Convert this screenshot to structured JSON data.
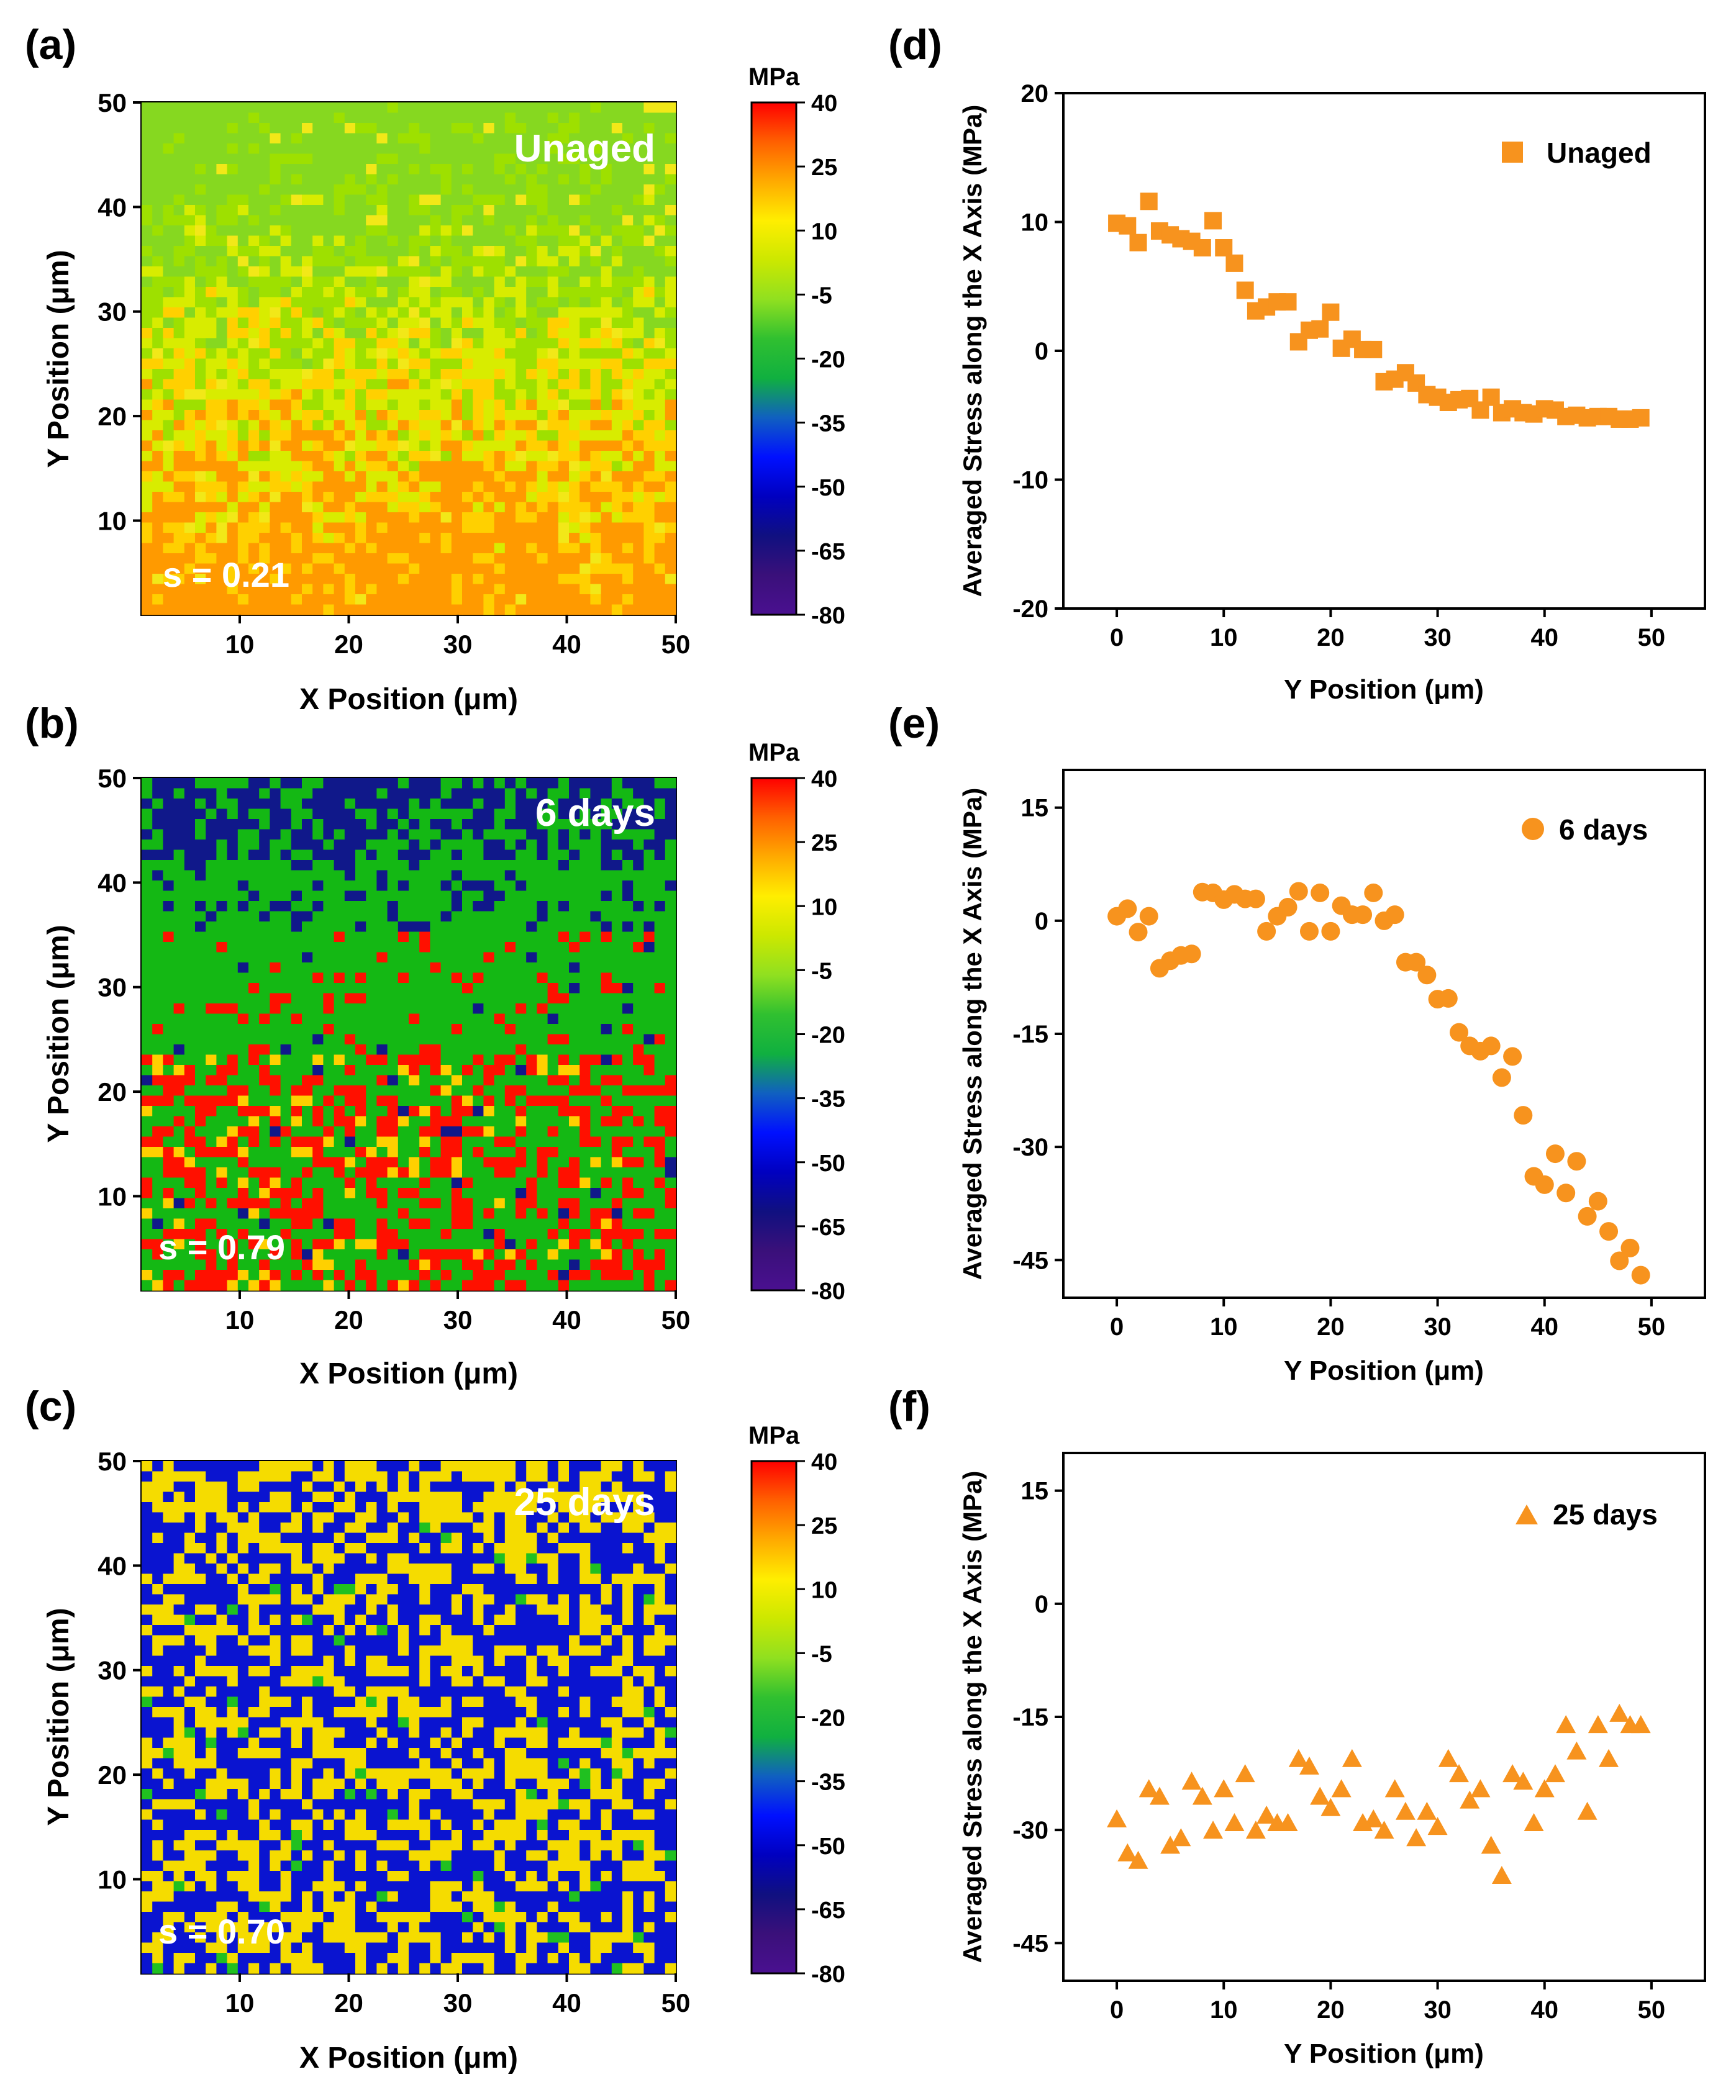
{
  "colorbar": {
    "unit": "MPa",
    "ticks": [
      40,
      25,
      10,
      -5,
      -20,
      -35,
      -50,
      -65,
      -80
    ],
    "colors": [
      "#ff0000",
      "#ff6000",
      "#ffaa00",
      "#ffee00",
      "#cce800",
      "#90e020",
      "#30c030",
      "#10b040",
      "#1060c0",
      "#0010ff",
      "#0000c0",
      "#101080",
      "#3a107a",
      "#4a1090"
    ]
  },
  "chart_data": [
    {
      "panel": "(a)",
      "type": "heatmap",
      "label": "Unaged",
      "annotation": "s = 0.21",
      "xlabel": "X Position (μm)",
      "ylabel": "Y Position (μm)",
      "xlim": [
        1,
        50
      ],
      "ylim": [
        1,
        50
      ],
      "xticks": [
        10,
        20,
        30,
        40,
        50
      ],
      "yticks": [
        10,
        20,
        30,
        40,
        50
      ],
      "colorbar_label": "MPa",
      "clim": [
        -80,
        40
      ],
      "palette": [
        "#ff9a00",
        "#ffd000",
        "#d8ec00",
        "#9ee000",
        "#86d820",
        "#f2e818"
      ]
    },
    {
      "panel": "(b)",
      "type": "heatmap",
      "label": "6 days",
      "annotation": "s = 0.79",
      "xlabel": "X Position (μm)",
      "ylabel": "Y Position (μm)",
      "xlim": [
        1,
        50
      ],
      "ylim": [
        1,
        50
      ],
      "xticks": [
        10,
        20,
        30,
        40,
        50
      ],
      "yticks": [
        10,
        20,
        30,
        40,
        50
      ],
      "colorbar_label": "MPa",
      "clim": [
        -80,
        40
      ],
      "palette": [
        "#14b814",
        "#10188a",
        "#ff1000",
        "#ffd000"
      ]
    },
    {
      "panel": "(c)",
      "type": "heatmap",
      "label": "25 days",
      "annotation": "s = 0.70",
      "xlabel": "X Position (μm)",
      "ylabel": "Y Position (μm)",
      "xlim": [
        1,
        50
      ],
      "ylim": [
        1,
        50
      ],
      "xticks": [
        10,
        20,
        30,
        40,
        50
      ],
      "yticks": [
        10,
        20,
        30,
        40,
        50
      ],
      "colorbar_label": "MPa",
      "clim": [
        -80,
        40
      ],
      "palette": [
        "#0a14d0",
        "#f5dc00",
        "#20c020"
      ]
    },
    {
      "panel": "(d)",
      "type": "scatter",
      "series_name": "Unaged",
      "marker": "square",
      "color": "#f7931e",
      "xlabel": "Y Position (μm)",
      "ylabel": "Averaged Stress along the X Axis (MPa)",
      "xlim": [
        -5,
        55
      ],
      "ylim": [
        -20,
        20
      ],
      "xticks": [
        0,
        10,
        20,
        30,
        40,
        50
      ],
      "yticks": [
        20,
        10,
        0,
        -10,
        -20
      ],
      "x": [
        0,
        1,
        2,
        3,
        4,
        5,
        6,
        7,
        8,
        9,
        10,
        11,
        12,
        13,
        14,
        15,
        16,
        17,
        18,
        19,
        20,
        21,
        22,
        23,
        24,
        25,
        26,
        27,
        28,
        29,
        30,
        31,
        32,
        33,
        34,
        35,
        36,
        37,
        38,
        39,
        40,
        41,
        42,
        43,
        44,
        45,
        46,
        47,
        48,
        49
      ],
      "y": [
        9.9,
        9.7,
        8.4,
        11.6,
        9.3,
        9.0,
        8.7,
        8.5,
        8.0,
        10.1,
        8.0,
        6.8,
        4.7,
        3.1,
        3.4,
        3.8,
        3.8,
        0.7,
        1.6,
        1.7,
        3.0,
        0.2,
        0.9,
        0.1,
        0.1,
        -2.4,
        -2.2,
        -1.7,
        -2.5,
        -3.4,
        -3.6,
        -4.0,
        -3.8,
        -3.7,
        -4.6,
        -3.6,
        -4.8,
        -4.5,
        -4.8,
        -4.9,
        -4.5,
        -4.6,
        -5.1,
        -5.0,
        -5.2,
        -5.1,
        -5.1,
        -5.3,
        -5.3,
        -5.2
      ]
    },
    {
      "panel": "(e)",
      "type": "scatter",
      "series_name": "6 days",
      "marker": "circle",
      "color": "#f7931e",
      "xlabel": "Y Position (μm)",
      "ylabel": "Averaged Stress along the X Axis (MPa)",
      "xlim": [
        -5,
        55
      ],
      "ylim": [
        -50,
        20
      ],
      "xticks": [
        0,
        10,
        20,
        30,
        40,
        50
      ],
      "yticks": [
        15,
        0,
        -15,
        -30,
        -45
      ],
      "x": [
        0,
        1,
        2,
        3,
        4,
        5,
        6,
        7,
        8,
        9,
        10,
        11,
        12,
        13,
        14,
        15,
        16,
        17,
        18,
        19,
        20,
        21,
        22,
        23,
        24,
        25,
        26,
        27,
        28,
        29,
        30,
        31,
        32,
        33,
        34,
        35,
        36,
        37,
        38,
        39,
        40,
        41,
        42,
        43,
        44,
        45,
        46,
        47,
        48,
        49
      ],
      "y": [
        0.6,
        1.6,
        -1.5,
        0.6,
        -6.3,
        -5.3,
        -4.6,
        -4.4,
        3.8,
        3.7,
        2.8,
        3.5,
        2.9,
        2.9,
        -1.4,
        0.6,
        1.8,
        3.9,
        -1.4,
        3.7,
        -1.4,
        2.0,
        0.8,
        0.8,
        3.7,
        0.0,
        0.8,
        -5.5,
        -5.5,
        -7.2,
        -10.4,
        -10.3,
        -14.8,
        -16.6,
        -17.3,
        -16.6,
        -20.8,
        -18.0,
        -25.8,
        -33.9,
        -35.0,
        -30.9,
        -36.1,
        -31.9,
        -39.2,
        -37.2,
        -41.2,
        -45.1,
        -43.4,
        -47.0
      ]
    },
    {
      "panel": "(f)",
      "type": "scatter",
      "series_name": "25 days",
      "marker": "triangle",
      "color": "#f7931e",
      "xlabel": "Y Position (μm)",
      "ylabel": "Averaged Stress along the X Axis (MPa)",
      "xlim": [
        -5,
        55
      ],
      "ylim": [
        -50,
        20
      ],
      "xticks": [
        0,
        10,
        20,
        30,
        40,
        50
      ],
      "yticks": [
        15,
        0,
        -15,
        -30,
        -45
      ],
      "x": [
        0,
        1,
        2,
        3,
        4,
        5,
        6,
        7,
        8,
        9,
        10,
        11,
        12,
        13,
        14,
        15,
        16,
        17,
        18,
        19,
        20,
        21,
        22,
        23,
        24,
        25,
        26,
        27,
        28,
        29,
        30,
        31,
        32,
        33,
        34,
        35,
        36,
        37,
        38,
        39,
        40,
        41,
        42,
        43,
        44,
        45,
        46,
        47,
        48,
        49
      ],
      "y": [
        -28.5,
        -33.0,
        -34.0,
        -24.5,
        -25.5,
        -32.0,
        -31.0,
        -23.5,
        -25.5,
        -30.0,
        -24.5,
        -29.0,
        -22.5,
        -30.0,
        -28.0,
        -29.0,
        -29.0,
        -20.5,
        -21.5,
        -25.5,
        -27.0,
        -24.5,
        -20.5,
        -29.0,
        -28.5,
        -30.0,
        -24.5,
        -27.5,
        -31.0,
        -27.5,
        -29.5,
        -20.5,
        -22.5,
        -26.0,
        -24.5,
        -32.0,
        -36.0,
        -22.5,
        -23.5,
        -29.0,
        -24.5,
        -22.5,
        -16.0,
        -19.5,
        -27.5,
        -16.0,
        -20.5,
        -14.5,
        -16.0,
        -16.0
      ]
    }
  ]
}
